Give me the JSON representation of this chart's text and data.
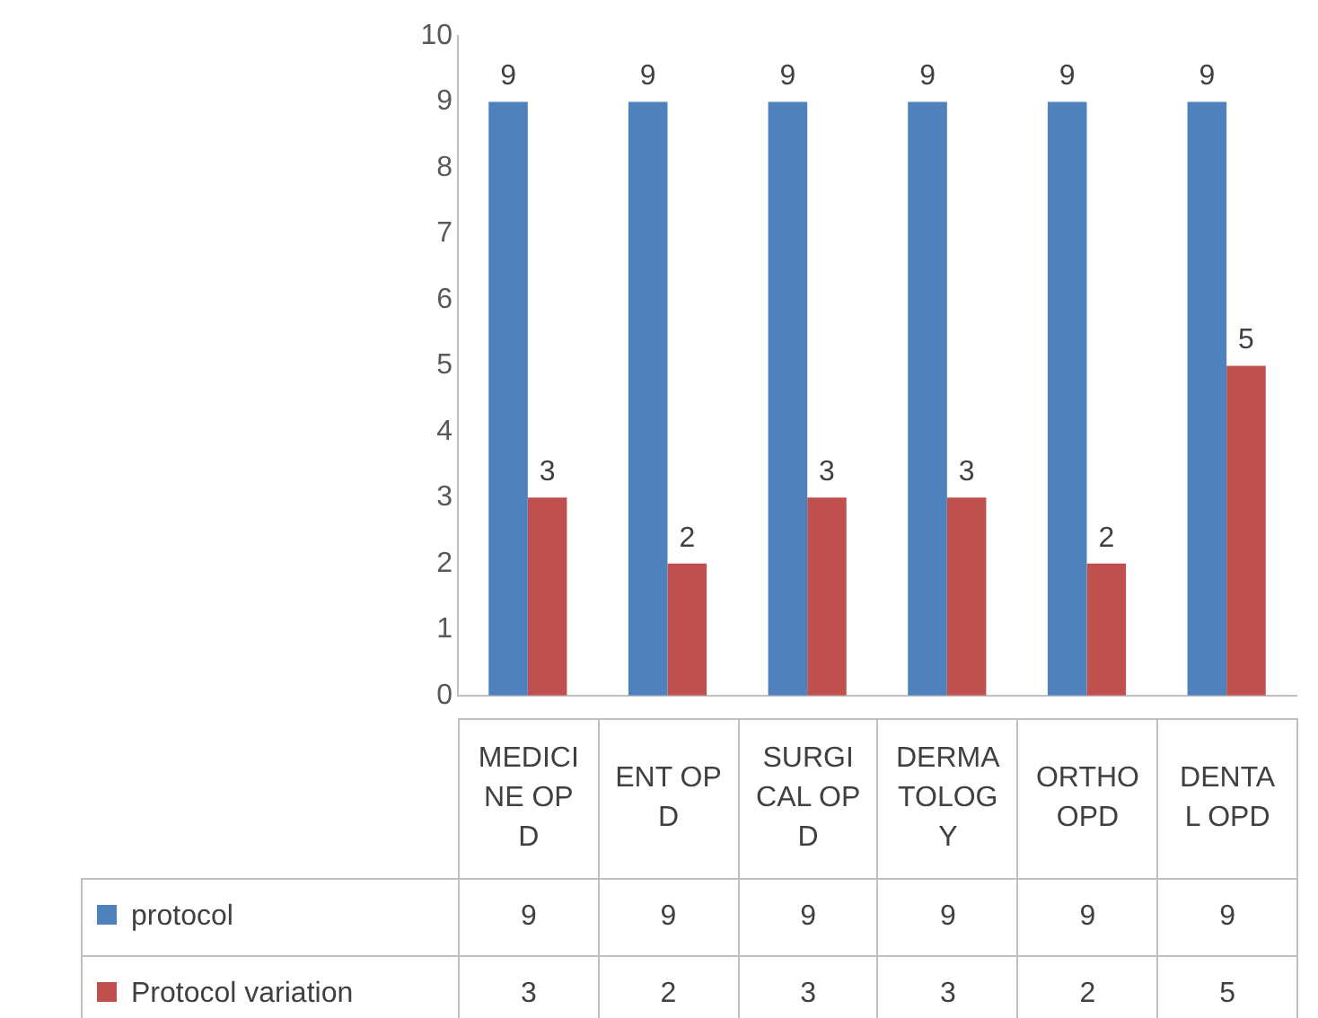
{
  "chart_data": {
    "type": "bar",
    "categories": [
      "MEDICINE OPD",
      "ENT OPD",
      "SURGICAL OPD",
      "DERMATOLOGY",
      "ORTHO OPD",
      "DENTAL OPD"
    ],
    "series": [
      {
        "name": "protocol",
        "color": "#4f81bd",
        "values": [
          9,
          9,
          9,
          9,
          9,
          9
        ],
        "value_labels": [
          "9",
          "9",
          "9",
          "9",
          "9",
          "9"
        ]
      },
      {
        "name": "Protocol variation",
        "color": "#c0504d",
        "values": [
          3,
          2,
          3,
          3,
          2,
          5
        ],
        "value_labels": [
          "3",
          "2",
          "3",
          "3",
          "2",
          "5"
        ]
      }
    ],
    "ylim": [
      0,
      10
    ],
    "yticks": [
      0,
      1,
      2,
      3,
      4,
      5,
      6,
      7,
      8,
      9,
      10
    ],
    "grid": false,
    "legend": "bottom"
  }
}
